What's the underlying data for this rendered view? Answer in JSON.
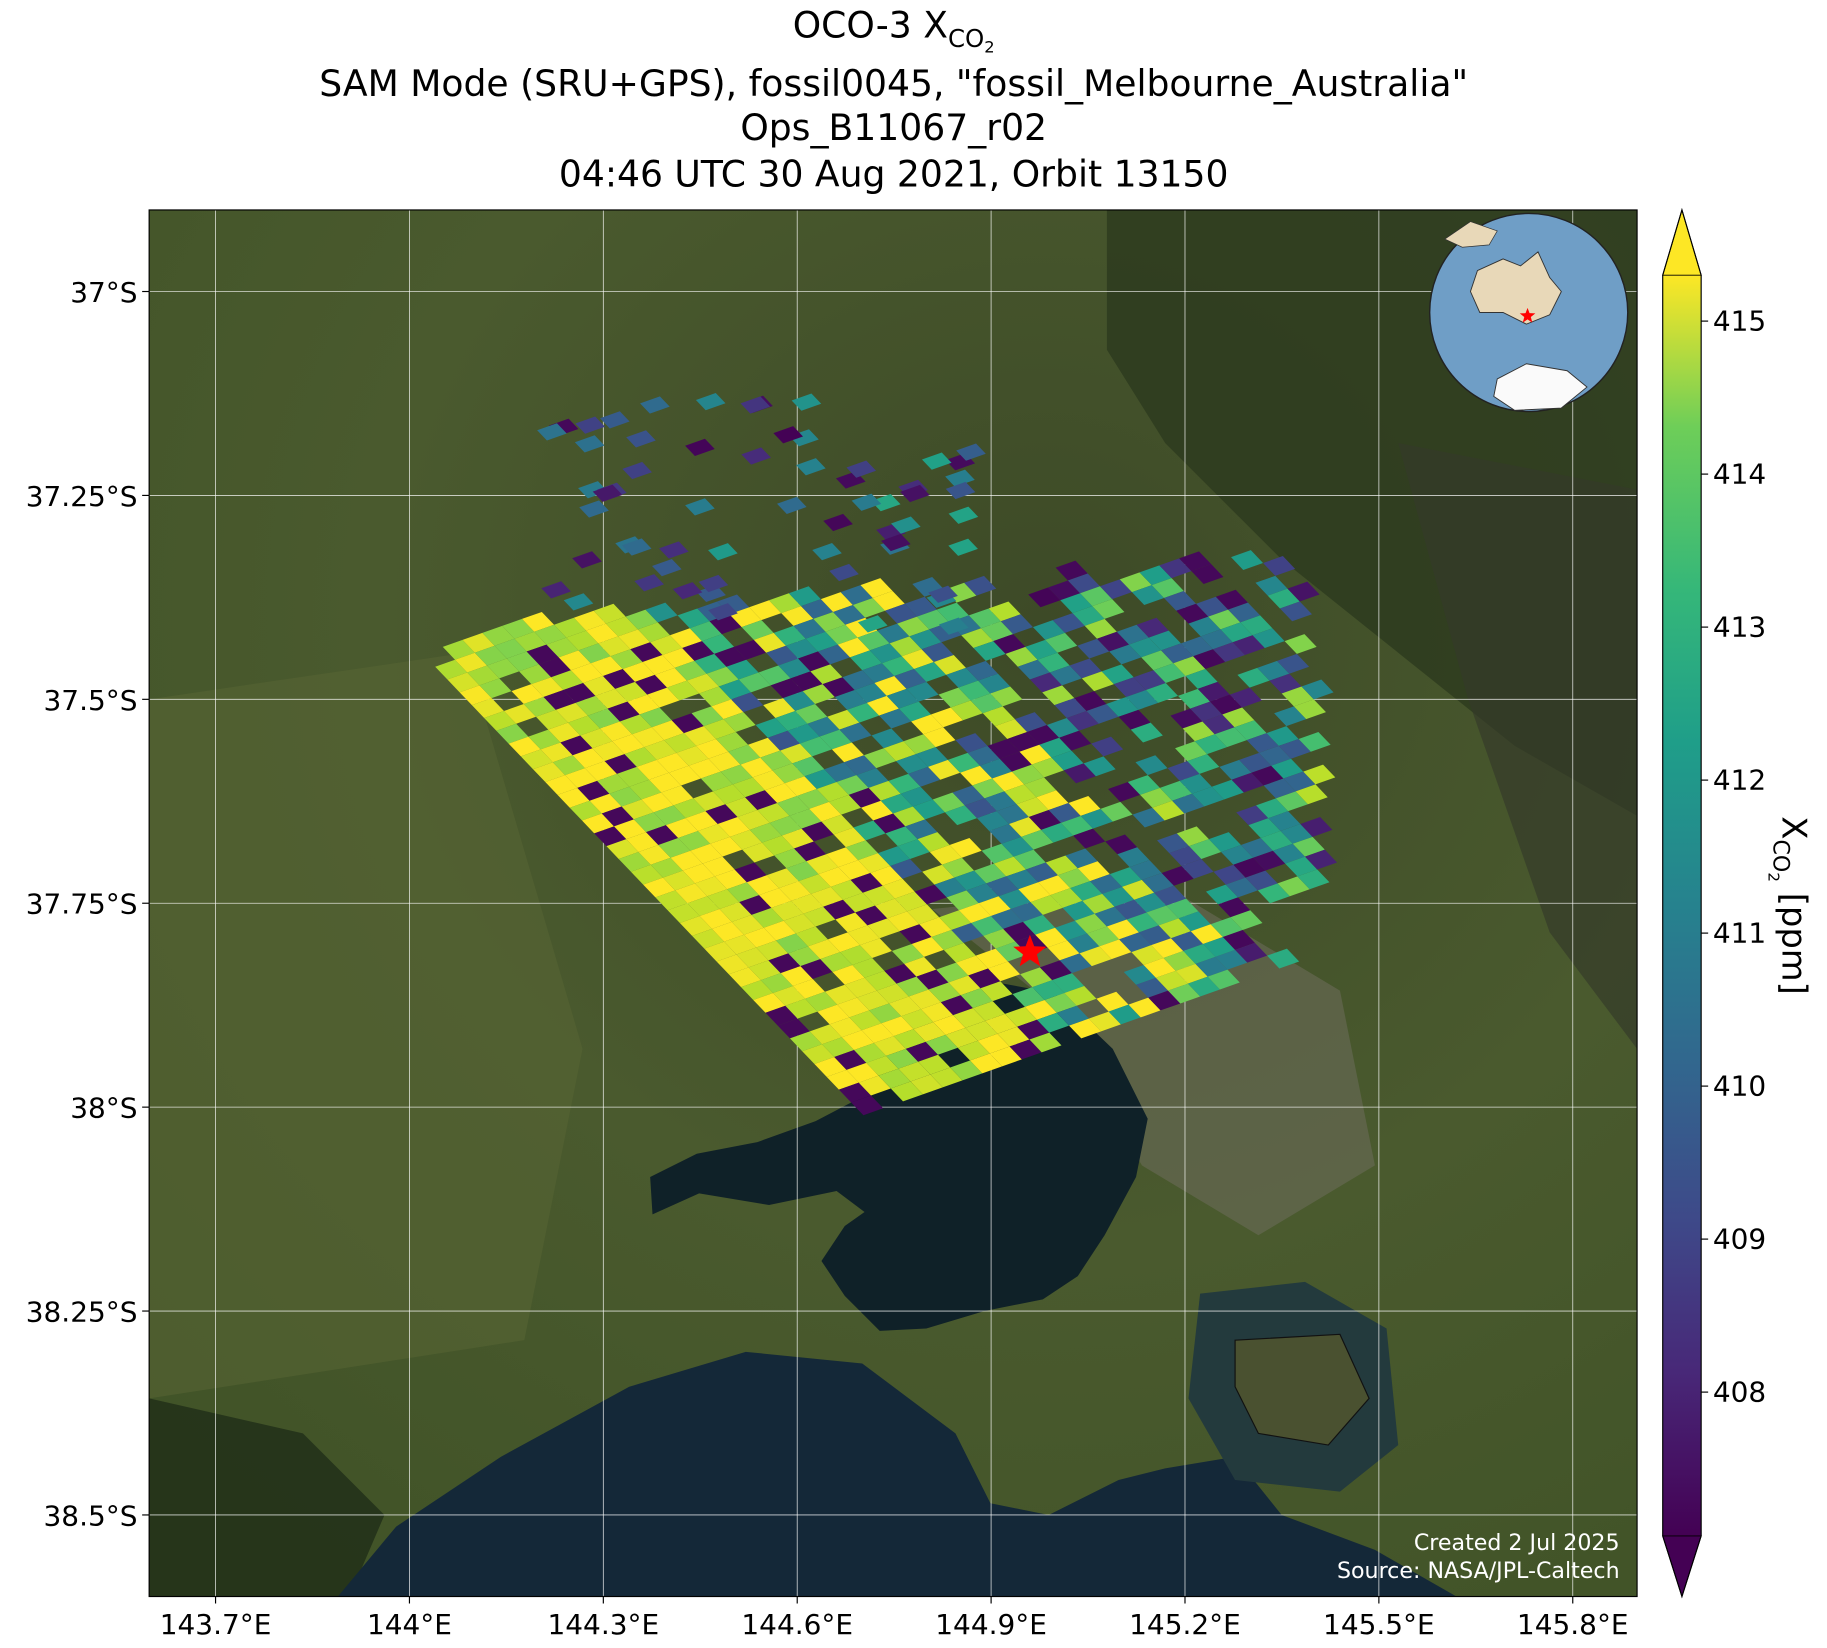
{
  "chart_data": {
    "type": "heatmap",
    "title_lines": {
      "line1_prefix": "OCO-3 X",
      "line1_sub": "CO",
      "line1_subsub": "2",
      "line2": "SAM Mode (SRU+GPS), fossil0045, \"fossil_Melbourne_Australia\"",
      "line3": "Ops_B11067_r02",
      "line4": "04:46 UTC 30 Aug 2021, Orbit 13150"
    },
    "xlabel": "",
    "ylabel": "",
    "x_ticks": [
      "143.7°E",
      "144°E",
      "144.3°E",
      "144.6°E",
      "144.9°E",
      "145.2°E",
      "145.5°E",
      "145.8°E"
    ],
    "x_tick_values": [
      143.7,
      144.0,
      144.3,
      144.6,
      144.9,
      145.2,
      145.5,
      145.8
    ],
    "y_ticks": [
      "37°S",
      "37.25°S",
      "37.5°S",
      "37.75°S",
      "38°S",
      "38.25°S",
      "38.5°S"
    ],
    "y_tick_values": [
      -37.0,
      -37.25,
      -37.5,
      -37.75,
      -38.0,
      -38.25,
      -38.5
    ],
    "xlim": [
      143.6,
      145.88
    ],
    "ylim": [
      -38.6,
      -36.9
    ],
    "grid": true,
    "target_marker": {
      "label": "Melbourne target",
      "lon": 144.96,
      "lat": -37.81,
      "color": "#ff0000"
    },
    "colorbar": {
      "label_prefix": "X",
      "label_sub": "CO",
      "label_subsub": "2",
      "label_suffix": " [ppm]",
      "ticks": [
        "408",
        "409",
        "410",
        "411",
        "412",
        "413",
        "414",
        "415"
      ],
      "tick_values": [
        408,
        409,
        410,
        411,
        412,
        413,
        414,
        415
      ],
      "range": [
        407.06,
        415.3
      ],
      "extend": "both",
      "colormap": "viridis"
    },
    "footer": {
      "created": "Created 2 Jul 2025",
      "source": "Source: NASA/JPL-Caltech"
    }
  }
}
